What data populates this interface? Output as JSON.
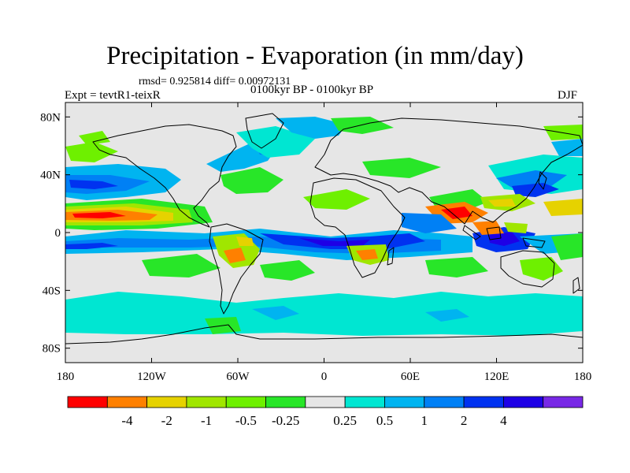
{
  "header": {
    "title": "Precipitation - Evaporation (in mm/day)",
    "stats": "rmsd= 0.925814 diff= 0.00972131",
    "experiment": "Expt = tevtR1-teixR",
    "period": "0100kyr BP - 0100kyr BP",
    "season": "DJF"
  },
  "map_axes": {
    "lat_labels": [
      "80N",
      "40N",
      "0",
      "40S",
      "80S"
    ],
    "lat_values": [
      80,
      40,
      0,
      -40,
      -80
    ],
    "lon_labels": [
      "180",
      "120W",
      "60W",
      "0",
      "60E",
      "120E",
      "180"
    ],
    "lon_values": [
      -180,
      -120,
      -60,
      0,
      60,
      120,
      180
    ],
    "lon_range": [
      -180,
      180
    ],
    "lat_range": [
      -90,
      90
    ]
  },
  "colorbar": {
    "colors": [
      "#ff0000",
      "#ff8000",
      "#e6d200",
      "#a0e600",
      "#6ef000",
      "#28e628",
      "#e6e6e6",
      "#00e6d2",
      "#00b4f0",
      "#0080f5",
      "#0032f0",
      "#1e00e6",
      "#7828e6"
    ],
    "labels": [
      "-4",
      "-2",
      "-1",
      "-0.5",
      "-0.25",
      "0.25",
      "0.5",
      "1",
      "2",
      "4"
    ]
  },
  "colors": {
    "background_field": "#e6e6e6",
    "coastline": "#000000"
  }
}
